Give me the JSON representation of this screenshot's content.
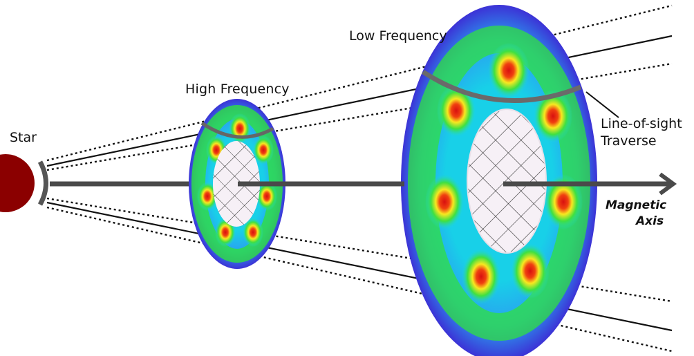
{
  "labels": {
    "star": "Star",
    "high_frequency": "High Frequency",
    "low_frequency": "Low Frequency",
    "line_of_sight_line1": "Line-of-sight",
    "line_of_sight_line2": "Traverse",
    "magnetic_axis_line1": "Magnetic",
    "magnetic_axis_line2": "Axis"
  },
  "colors": {
    "star": "#8b0000",
    "beam_outer": "#3a2bd8",
    "beam_mid": "#18d8e0",
    "beam_green": "#30e040",
    "beam_yellow": "#f0f020",
    "beam_hot": "#e02010",
    "hatch_fill": "#f4eef4",
    "axis": "#4a4a4a"
  }
}
